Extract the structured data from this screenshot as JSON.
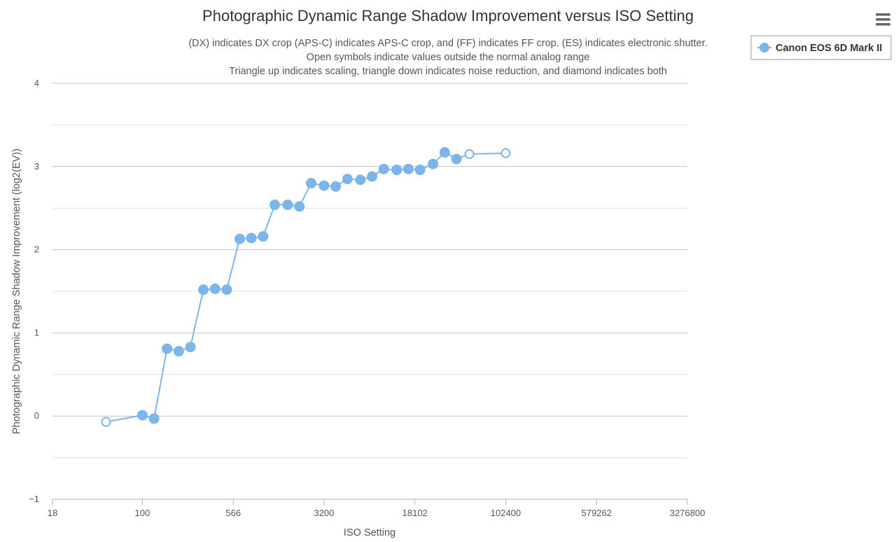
{
  "chart_data": {
    "type": "line",
    "title": "Photographic Dynamic Range Shadow Improvement versus ISO Setting",
    "subtitle": [
      "(DX) indicates DX crop (APS-C) indicates APS-C crop, and (FF) indicates FF crop. (ES) indicates electronic shutter.",
      "Open symbols indicate values outside the normal analog range",
      "Triangle up indicates scaling, triangle down indicates noise reduction, and diamond indicates both"
    ],
    "xlabel": "ISO Setting",
    "ylabel": "Photographic Dynamic Range Shadow Improvement (log2(EV))",
    "x_scale": "log",
    "xlim": [
      18,
      3276800
    ],
    "ylim": [
      -1,
      4
    ],
    "x_ticks": [
      "18",
      "100",
      "566",
      "3200",
      "18102",
      "102400",
      "579262",
      "3276800"
    ],
    "y_ticks": [
      "4",
      "3",
      "2",
      "1",
      "0",
      "−1"
    ],
    "grid": true,
    "legend_position": "top-right",
    "series": [
      {
        "name": "Canon EOS 6D Mark II",
        "color": "#7cb5ec",
        "x": [
          50,
          100,
          125,
          160,
          200,
          250,
          320,
          400,
          500,
          640,
          800,
          1000,
          1250,
          1600,
          2000,
          2500,
          3200,
          4000,
          5000,
          6400,
          8000,
          10000,
          12800,
          16000,
          20000,
          25600,
          32000,
          40000,
          51200,
          102400
        ],
        "y": [
          -0.07,
          0.01,
          -0.03,
          0.81,
          0.78,
          0.83,
          1.52,
          1.53,
          1.52,
          2.13,
          2.14,
          2.16,
          2.54,
          2.54,
          2.52,
          2.8,
          2.77,
          2.76,
          2.85,
          2.84,
          2.88,
          2.97,
          2.96,
          2.97,
          2.96,
          3.03,
          3.17,
          3.09,
          3.15,
          3.16
        ],
        "open": [
          true,
          false,
          false,
          false,
          false,
          false,
          false,
          false,
          false,
          false,
          false,
          false,
          false,
          false,
          false,
          false,
          false,
          false,
          false,
          false,
          false,
          false,
          false,
          false,
          false,
          false,
          false,
          false,
          true,
          true
        ]
      }
    ]
  },
  "menu": {
    "icon": "hamburger-menu-icon"
  }
}
